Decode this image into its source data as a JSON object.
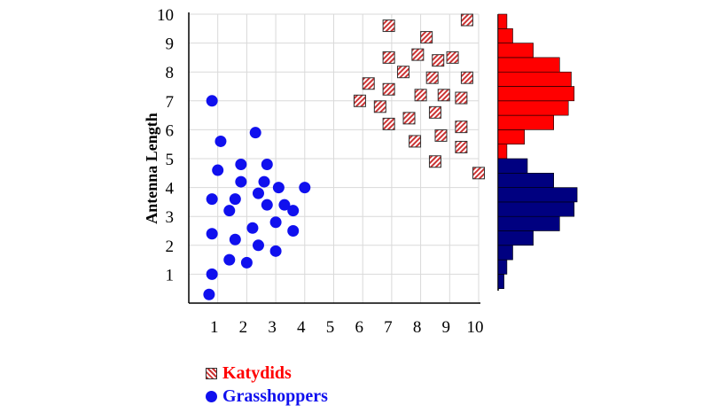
{
  "chart_data": {
    "type": "scatter",
    "ylabel": "Antenna  Length",
    "xlabel": "",
    "xlim": [
      0,
      10
    ],
    "ylim": [
      0,
      10
    ],
    "xticks": [
      1,
      2,
      3,
      4,
      5,
      6,
      7,
      8,
      9,
      10
    ],
    "yticks": [
      1,
      2,
      3,
      4,
      5,
      6,
      7,
      8,
      9,
      10
    ],
    "grid": true,
    "legend_position": "bottom-left",
    "series": [
      {
        "name": "Katydids",
        "color": "#ff0000",
        "marker": "hatched-square",
        "points": [
          [
            6.9,
            9.6
          ],
          [
            9.6,
            9.8
          ],
          [
            8.2,
            9.2
          ],
          [
            7.9,
            8.6
          ],
          [
            6.9,
            8.5
          ],
          [
            8.6,
            8.4
          ],
          [
            9.1,
            8.5
          ],
          [
            7.4,
            8.0
          ],
          [
            8.4,
            7.8
          ],
          [
            9.6,
            7.8
          ],
          [
            6.2,
            7.6
          ],
          [
            6.9,
            7.4
          ],
          [
            8.0,
            7.2
          ],
          [
            8.8,
            7.2
          ],
          [
            9.4,
            7.1
          ],
          [
            5.9,
            7.0
          ],
          [
            6.6,
            6.8
          ],
          [
            8.5,
            6.6
          ],
          [
            7.6,
            6.4
          ],
          [
            6.9,
            6.2
          ],
          [
            9.4,
            6.1
          ],
          [
            8.7,
            5.8
          ],
          [
            7.8,
            5.6
          ],
          [
            9.4,
            5.4
          ],
          [
            8.5,
            4.9
          ],
          [
            10.0,
            4.5
          ]
        ]
      },
      {
        "name": "Grasshoppers",
        "color": "#1010ee",
        "marker": "circle",
        "points": [
          [
            0.8,
            7.0
          ],
          [
            2.3,
            5.9
          ],
          [
            1.1,
            5.6
          ],
          [
            1.8,
            4.8
          ],
          [
            2.7,
            4.8
          ],
          [
            1.0,
            4.6
          ],
          [
            1.8,
            4.2
          ],
          [
            2.6,
            4.2
          ],
          [
            3.1,
            4.0
          ],
          [
            4.0,
            4.0
          ],
          [
            2.4,
            3.8
          ],
          [
            1.6,
            3.6
          ],
          [
            0.8,
            3.6
          ],
          [
            2.7,
            3.4
          ],
          [
            3.3,
            3.4
          ],
          [
            1.4,
            3.2
          ],
          [
            3.6,
            3.2
          ],
          [
            3.0,
            2.8
          ],
          [
            2.2,
            2.6
          ],
          [
            3.6,
            2.5
          ],
          [
            0.8,
            2.4
          ],
          [
            1.6,
            2.2
          ],
          [
            2.4,
            2.0
          ],
          [
            3.0,
            1.8
          ],
          [
            1.4,
            1.5
          ],
          [
            2.0,
            1.4
          ],
          [
            0.8,
            1.0
          ],
          [
            0.7,
            0.3
          ]
        ]
      }
    ],
    "histograms": {
      "orientation": "horizontal",
      "bin_width": 0.5,
      "series": [
        {
          "name": "Katydids",
          "color": "#ff0000",
          "bins": [
            [
              4.5,
              2
            ],
            [
              5.0,
              3
            ],
            [
              5.5,
              9
            ],
            [
              6.0,
              19
            ],
            [
              6.5,
              24
            ],
            [
              7.0,
              26
            ],
            [
              7.5,
              25
            ],
            [
              8.0,
              21
            ],
            [
              8.5,
              12
            ],
            [
              9.0,
              5
            ],
            [
              9.5,
              3
            ]
          ]
        },
        {
          "name": "Grasshoppers",
          "color": "#000080",
          "bins": [
            [
              0.5,
              2
            ],
            [
              1.0,
              3
            ],
            [
              1.5,
              5
            ],
            [
              2.0,
              12
            ],
            [
              2.5,
              21
            ],
            [
              3.0,
              26
            ],
            [
              3.5,
              27
            ],
            [
              4.0,
              19
            ],
            [
              4.5,
              10
            ]
          ]
        }
      ]
    }
  },
  "legend": {
    "katydids_label": "Katydids",
    "katydids_color": "#ff0000",
    "grasshoppers_label": "Grasshoppers",
    "grasshoppers_color": "#1010ee"
  }
}
